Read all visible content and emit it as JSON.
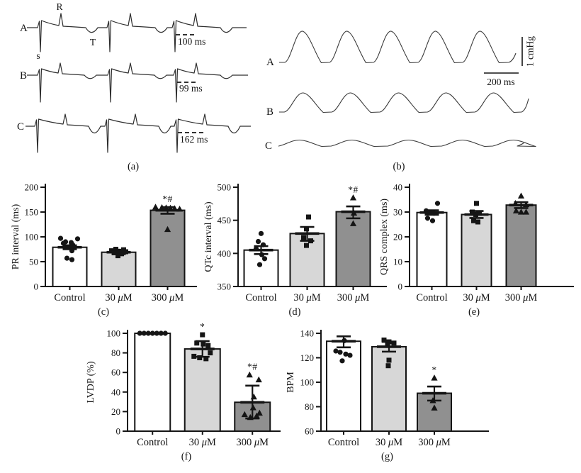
{
  "panel_a": {
    "label": "(a)",
    "wave_labels": {
      "r": "R",
      "s": "s",
      "t": "T"
    },
    "traces": [
      {
        "label": "A",
        "interval": "100 ms"
      },
      {
        "label": "B",
        "interval": "99 ms"
      },
      {
        "label": "C",
        "interval": "162 ms"
      }
    ]
  },
  "panel_b": {
    "label": "(b)",
    "traces": [
      {
        "label": "A"
      },
      {
        "label": "B"
      },
      {
        "label": "C"
      }
    ],
    "vscale_label": "1 cmHg",
    "hscale_label": "200 ms"
  },
  "chart_data": [
    {
      "id": "c",
      "type": "bar",
      "panel_label": "(c)",
      "ylabel": "PR interval (ms)",
      "ylim": [
        0,
        200
      ],
      "yticks": [
        0,
        50,
        100,
        150,
        200
      ],
      "categories": [
        "Control",
        "30 μM",
        "300 μM"
      ],
      "values": [
        79,
        69,
        153.5
      ],
      "errors": [
        [
          75,
          83
        ],
        [
          65,
          73
        ],
        [
          146.5,
          160
        ]
      ],
      "sig": [
        "",
        "",
        "*#"
      ],
      "bar_colors": [
        "#ffffff",
        "#d7d7d7",
        "#909090"
      ],
      "points": [
        {
          "marker": "circle",
          "values": [
            97,
            96,
            90,
            88.5,
            87,
            84,
            80,
            72,
            57,
            54
          ],
          "jitter": [
            -13,
            11,
            -6,
            2,
            -9,
            4,
            0,
            3,
            -4,
            3
          ]
        },
        {
          "marker": "square",
          "values": [
            75,
            74,
            72,
            71,
            70,
            68,
            66,
            62
          ],
          "jitter": [
            -4,
            7,
            -10,
            2,
            10,
            -6,
            4,
            -1
          ]
        },
        {
          "marker": "triangle",
          "values": [
            160,
            159,
            158.5,
            158,
            157,
            156,
            115
          ],
          "jitter": [
            -17,
            -8,
            -2,
            4,
            10,
            17,
            0
          ]
        }
      ]
    },
    {
      "id": "d",
      "type": "bar",
      "panel_label": "(d)",
      "ylabel": "QTc interval (ms)",
      "ylim": [
        350,
        500
      ],
      "yticks": [
        350,
        400,
        450,
        500
      ],
      "categories": [
        "Control",
        "30 μM",
        "300 μM"
      ],
      "values": [
        405,
        430,
        463
      ],
      "errors": [
        [
          399,
          411
        ],
        [
          419,
          440
        ],
        [
          453,
          471
        ]
      ],
      "sig": [
        "",
        "",
        "*#"
      ],
      "bar_colors": [
        "#ffffff",
        "#d7d7d7",
        "#909090"
      ],
      "points": [
        {
          "marker": "circle",
          "values": [
            430,
            418,
            413,
            407,
            398,
            392,
            383
          ],
          "jitter": [
            0,
            -4,
            3,
            -7,
            1,
            5,
            -2
          ]
        },
        {
          "marker": "square",
          "values": [
            455,
            437,
            424,
            419,
            412
          ],
          "jitter": [
            2,
            -1,
            -5,
            5,
            -1
          ]
        },
        {
          "marker": "triangle",
          "values": [
            484,
            461,
            445
          ],
          "jitter": [
            0,
            1,
            0
          ]
        }
      ]
    },
    {
      "id": "e",
      "type": "bar",
      "panel_label": "(e)",
      "ylabel": "QRS complex (ms)",
      "ylim": [
        0,
        40
      ],
      "yticks": [
        0,
        10,
        20,
        30,
        40
      ],
      "categories": [
        "Control",
        "30 μM",
        "300 μM"
      ],
      "values": [
        29.8,
        29,
        32.8
      ],
      "errors": [
        [
          28.9,
          30.7
        ],
        [
          27.6,
          30.4
        ],
        [
          31.6,
          34
        ]
      ],
      "sig": [
        "",
        "",
        ""
      ],
      "bar_colors": [
        "#ffffff",
        "#d7d7d7",
        "#909090"
      ],
      "points": [
        {
          "marker": "circle",
          "values": [
            33.5,
            30.5,
            30,
            29.5,
            27.5,
            26.5
          ],
          "jitter": [
            8,
            -8,
            -3,
            3,
            -6,
            1
          ]
        },
        {
          "marker": "square",
          "values": [
            33.5,
            30,
            29.5,
            29,
            26.5,
            26
          ],
          "jitter": [
            0,
            -6,
            4,
            -1,
            -4,
            2
          ]
        },
        {
          "marker": "triangle",
          "values": [
            36.5,
            33.5,
            33,
            30.5,
            30,
            30
          ],
          "jitter": [
            0,
            -8,
            7,
            -7,
            0,
            7
          ]
        }
      ]
    },
    {
      "id": "f",
      "type": "bar",
      "panel_label": "(f)",
      "ylabel": "LVDP (%)",
      "ylim": [
        0,
        100
      ],
      "yticks": [
        0,
        20,
        40,
        60,
        80,
        100
      ],
      "categories": [
        "Control",
        "30 μM",
        "300 μM"
      ],
      "values": [
        100,
        84,
        29.5
      ],
      "errors": [
        null,
        [
          76,
          92
        ],
        [
          13,
          46.5
        ]
      ],
      "sig": [
        "",
        "*",
        "*#"
      ],
      "bar_colors": [
        "#ffffff",
        "#d7d7d7",
        "#909090"
      ],
      "points": [
        {
          "marker": "circle",
          "values": [
            100,
            100,
            100,
            100,
            100,
            100,
            100
          ],
          "jitter": [
            -18,
            -12,
            -6,
            0,
            6,
            12,
            18
          ]
        },
        {
          "marker": "square",
          "values": [
            98.5,
            90,
            89,
            87.5,
            80,
            76.5,
            75,
            74
          ],
          "jitter": [
            0,
            -8,
            1,
            8,
            11,
            -12,
            -4,
            5
          ]
        },
        {
          "marker": "triangle",
          "values": [
            57.5,
            52.5,
            35,
            24,
            18.5,
            17,
            15.5,
            14
          ],
          "jitter": [
            -4,
            9,
            2,
            1,
            10,
            -11,
            6,
            -3
          ]
        }
      ]
    },
    {
      "id": "g",
      "type": "bar",
      "panel_label": "(g)",
      "ylabel": "BPM",
      "ylim": [
        60,
        140
      ],
      "yticks": [
        60,
        80,
        100,
        120,
        140
      ],
      "categories": [
        "Control",
        "30 μM",
        "300 μM"
      ],
      "values": [
        133.5,
        129,
        91
      ],
      "errors": [
        [
          128.5,
          137.5
        ],
        [
          125,
          133
        ],
        [
          85,
          96.5
        ]
      ],
      "sig": [
        "",
        "",
        "*"
      ],
      "bar_colors": [
        "#ffffff",
        "#d7d7d7",
        "#909090"
      ],
      "points": [
        {
          "marker": "circle",
          "values": [
            134,
            125.5,
            124.5,
            123,
            122,
            117.5
          ],
          "jitter": [
            1,
            -11,
            -5,
            3,
            9,
            -2
          ]
        },
        {
          "marker": "square",
          "values": [
            134.5,
            133,
            132,
            130.5,
            118,
            113.5
          ],
          "jitter": [
            -7,
            0,
            7,
            -2,
            0,
            -1
          ]
        },
        {
          "marker": "triangle",
          "values": [
            103.5,
            85,
            79
          ],
          "jitter": [
            0,
            -2,
            0
          ]
        }
      ]
    }
  ]
}
